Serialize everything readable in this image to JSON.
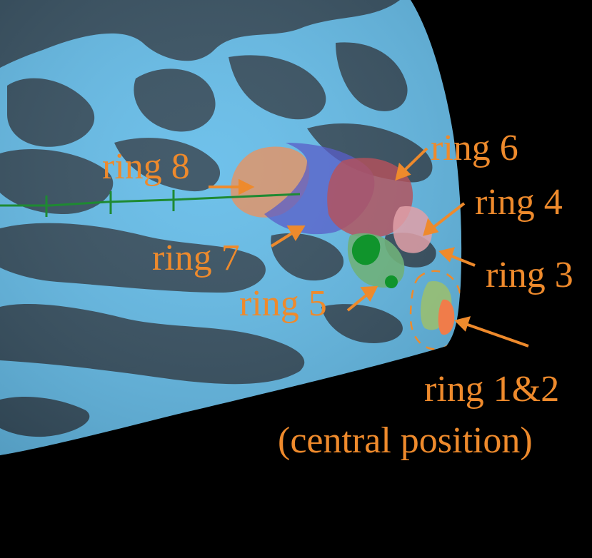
{
  "colors": {
    "background": "#000000",
    "surface_light": "#5cb9e8",
    "surface_dark": "#2b4658",
    "annotation": "#ee8a2c",
    "axis_line": "#1e8a32"
  },
  "labels": {
    "ring8": "ring 8",
    "ring7": "ring 7",
    "ring6": "ring 6",
    "ring5": "ring 5",
    "ring4": "ring 4",
    "ring3": "ring 3",
    "ring12_line1": "ring 1&2",
    "ring12_line2": "(central position)"
  }
}
